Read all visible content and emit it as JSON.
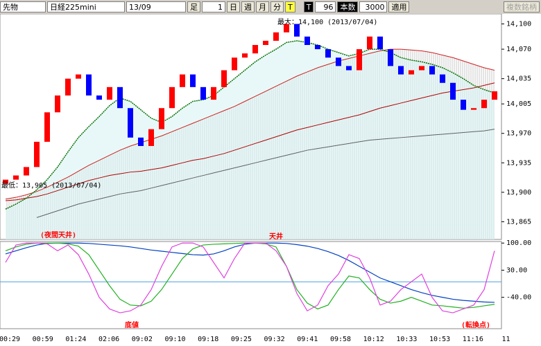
{
  "toolbar": {
    "market": "先物",
    "symbol": "日経225mini",
    "contract": "13/09",
    "foot_label": "足",
    "foot_value": "1",
    "day": "日",
    "week": "週",
    "month": "月",
    "minute": "分",
    "tick_t": "T",
    "tick_t2": "T",
    "count_value": "96",
    "count_label": "本数",
    "count_max": "3000",
    "apply": "適用",
    "multi": "複数銘柄"
  },
  "chart_data": [
    {
      "type": "candlestick",
      "up_color": "#ff0000",
      "down_color": "#0000ff",
      "ylim": [
        13844,
        14112
      ],
      "yticks": [
        {
          "value": 14100,
          "label": "14,100"
        },
        {
          "value": 14070,
          "label": "14,070"
        },
        {
          "value": 14035,
          "label": "14,035"
        },
        {
          "value": 14005,
          "label": "14,005"
        },
        {
          "value": 13970,
          "label": "13,970"
        },
        {
          "value": 13935,
          "label": "13,935"
        },
        {
          "value": 13900,
          "label": "13,900"
        },
        {
          "value": 13865,
          "label": "13,865"
        }
      ],
      "time_labels": [
        "00:29",
        "00:59",
        "01:24",
        "02:06",
        "09:02",
        "09:10",
        "09:18",
        "09:25",
        "09:32",
        "09:41",
        "09:58",
        "10:12",
        "10:33",
        "10:53",
        "11:16",
        "11"
      ],
      "open": [
        13910,
        13915,
        13920,
        13930,
        13960,
        13995,
        14015,
        14035,
        14040,
        14015,
        14010,
        14025,
        14000,
        13965,
        13955,
        13975,
        14000,
        14025,
        14040,
        14025,
        14010,
        14025,
        14045,
        14060,
        14065,
        14075,
        14080,
        14090,
        14100,
        14085,
        14075,
        14070,
        14060,
        14050,
        14045,
        14070,
        14085,
        14070,
        14050,
        14040,
        14045,
        14050,
        14040,
        14030,
        14010,
        13998,
        14000,
        14010
      ],
      "close": [
        13915,
        13920,
        13930,
        13960,
        13995,
        14015,
        14035,
        14040,
        14015,
        14010,
        14025,
        14000,
        13965,
        13955,
        13975,
        14000,
        14025,
        14040,
        14025,
        14010,
        14025,
        14045,
        14060,
        14065,
        14075,
        14080,
        14090,
        14100,
        14085,
        14075,
        14070,
        14060,
        14050,
        14045,
        14070,
        14085,
        14070,
        14050,
        14040,
        14045,
        14050,
        14040,
        14030,
        14010,
        13998,
        14000,
        14010,
        14020
      ],
      "series": [
        {
          "name": "MA-long",
          "color": "#606060",
          "values": [
            null,
            null,
            null,
            13870,
            13874,
            13878,
            13882,
            13886,
            13889,
            13892,
            13895,
            13898,
            13900,
            13902,
            13905,
            13908,
            13911,
            13914,
            13917,
            13920,
            13923,
            13926,
            13929,
            13932,
            13935,
            13938,
            13941,
            13944,
            13947,
            13950,
            13952,
            13954,
            13956,
            13958,
            13960,
            13962,
            13963,
            13964,
            13965,
            13966,
            13967,
            13968,
            13969,
            13970,
            13971,
            13972,
            13973,
            13975
          ]
        },
        {
          "name": "MA-mid",
          "color": "#b00000",
          "values": [
            13890,
            13891,
            13893,
            13895,
            13898,
            13902,
            13906,
            13910,
            13914,
            13917,
            13920,
            13922,
            13924,
            13925,
            13927,
            13929,
            13932,
            13935,
            13938,
            13940,
            13943,
            13946,
            13950,
            13954,
            13958,
            13962,
            13966,
            13970,
            13974,
            13977,
            13980,
            13983,
            13986,
            13989,
            13992,
            13996,
            14000,
            14003,
            14006,
            14009,
            14012,
            14015,
            14018,
            14020,
            14022,
            14024,
            14027,
            14030
          ]
        },
        {
          "name": "MA-upper",
          "color": "#d02020",
          "values": [
            13892,
            13894,
            13897,
            13901,
            13906,
            13912,
            13918,
            13925,
            13932,
            13938,
            13944,
            13950,
            13955,
            13959,
            13963,
            13967,
            13972,
            13977,
            13982,
            13987,
            13992,
            13997,
            14002,
            14008,
            14014,
            14020,
            14026,
            14032,
            14038,
            14043,
            14048,
            14052,
            14056,
            14059,
            14062,
            14065,
            14068,
            14070,
            14070,
            14069,
            14068,
            14066,
            14063,
            14060,
            14056,
            14052,
            14048,
            14045
          ]
        },
        {
          "name": "MA-green",
          "color": "#007000",
          "values": [
            13880,
            13886,
            13893,
            13903,
            13915,
            13930,
            13948,
            13965,
            13978,
            13990,
            14003,
            14012,
            14008,
            13998,
            13988,
            13983,
            13990,
            14000,
            14008,
            14010,
            14015,
            14025,
            14035,
            14045,
            14055,
            14063,
            14070,
            14078,
            14080,
            14078,
            14075,
            14070,
            14066,
            14062,
            14065,
            14070,
            14070,
            14066,
            14060,
            14057,
            14055,
            14052,
            14048,
            14042,
            14035,
            14027,
            14022,
            14018
          ]
        }
      ],
      "annotations": [
        "最大：14,100 (2013/07/04)",
        "最低：13,905 (2013/07/04)",
        "(夜間天井)",
        "天井"
      ]
    },
    {
      "type": "line",
      "ylim": [
        -121,
        104
      ],
      "yticks": [
        {
          "value": 100,
          "label": "100.00"
        },
        {
          "value": 30,
          "label": "30.00"
        },
        {
          "value": -40,
          "label": "-40.00"
        }
      ],
      "hline": 0,
      "series": [
        {
          "name": "slow",
          "color": "#0040c0",
          "values": [
            72,
            80,
            88,
            95,
            99,
            100,
            100,
            100,
            99,
            97,
            95,
            93,
            90,
            86,
            82,
            79,
            76,
            73,
            70,
            69,
            72,
            80,
            90,
            97,
            100,
            100,
            100,
            99,
            96,
            92,
            86,
            78,
            68,
            55,
            40,
            25,
            10,
            0,
            -10,
            -20,
            -28,
            -35,
            -40,
            -45,
            -48,
            -50,
            -52,
            -53
          ]
        },
        {
          "name": "mid",
          "color": "#20b020",
          "values": [
            80,
            90,
            97,
            100,
            100,
            100,
            98,
            92,
            70,
            30,
            -10,
            -45,
            -60,
            -62,
            -50,
            -20,
            20,
            60,
            85,
            95,
            97,
            98,
            99,
            100,
            100,
            98,
            90,
            40,
            -20,
            -55,
            -70,
            -60,
            -20,
            15,
            10,
            -20,
            -45,
            -55,
            -50,
            -40,
            -50,
            -60,
            -62,
            -65,
            -68,
            -66,
            -62,
            -58
          ]
        },
        {
          "name": "fast",
          "color": "#e040e0",
          "values": [
            50,
            95,
            100,
            100,
            98,
            80,
            95,
            70,
            20,
            -40,
            -70,
            -80,
            -75,
            -60,
            -20,
            40,
            90,
            100,
            100,
            90,
            50,
            10,
            60,
            100,
            100,
            100,
            80,
            40,
            -30,
            -75,
            -60,
            -10,
            20,
            70,
            60,
            10,
            -60,
            -50,
            -20,
            0,
            20,
            -40,
            -75,
            -80,
            -70,
            -60,
            -20,
            80
          ]
        }
      ],
      "annotations": [
        "底値",
        "(転換点)"
      ]
    }
  ]
}
